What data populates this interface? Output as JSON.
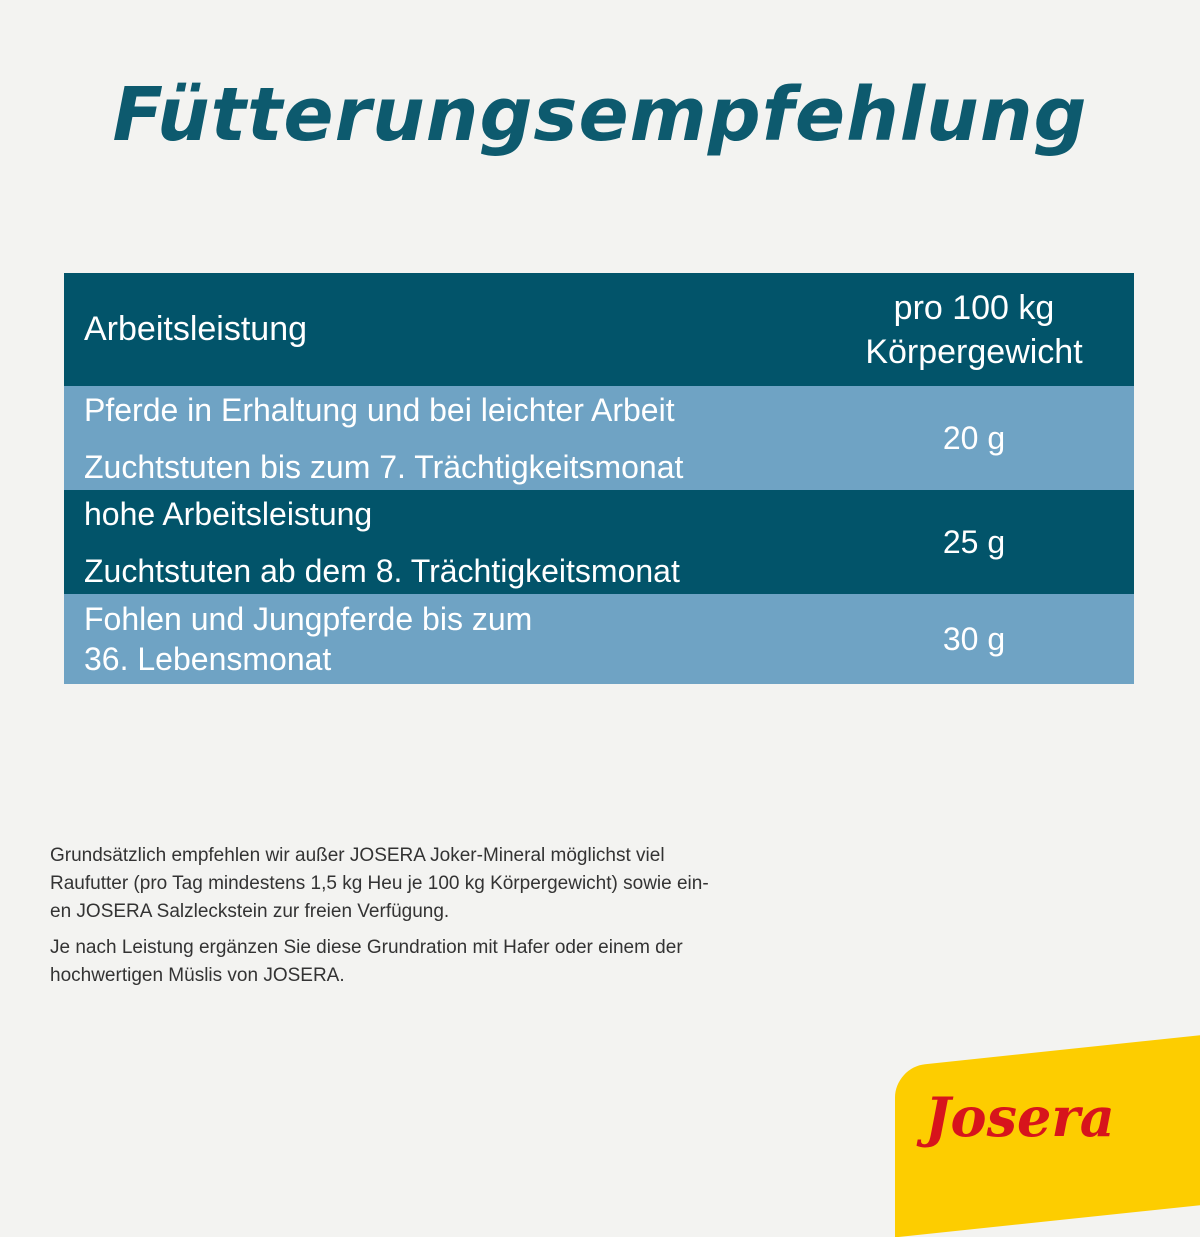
{
  "title": "Fütterungsempfehlung",
  "table": {
    "header": {
      "col1": "Arbeitsleistung",
      "col2_line1": "pro 100 kg",
      "col2_line2": "Körpergewicht"
    },
    "rows": [
      {
        "lines": [
          "Pferde in Erhaltung und bei leichter Arbeit",
          "Zuchtstuten bis zum 7. Trächtigkeitsmonat"
        ],
        "amount": "20 g"
      },
      {
        "lines": [
          "hohe Arbeitsleistung",
          "Zuchtstuten ab dem 8. Trächtigkeitsmonat"
        ],
        "amount": "25 g"
      },
      {
        "lines": [
          "Fohlen und Jungpferde bis zum",
          "36. Lebensmonat"
        ],
        "amount": "30 g"
      }
    ]
  },
  "note": {
    "p1_lines": [
      "Grundsätzlich empfehlen wir außer JOSERA  Joker-Mineral möglichst viel",
      "Raufutter (pro Tag mindestens 1,5 kg Heu je 100 kg Körpergewicht) sowie ein-",
      "en JOSERA Salzleckstein zur freien Verfügung."
    ],
    "p2_lines": [
      "Je nach Leistung ergänzen Sie diese Grundration mit Hafer oder einem der",
      "hochwertigen Müslis von JOSERA."
    ]
  },
  "logo": {
    "text": "Josera",
    "bg": "#fdcd00",
    "color": "#d7141c"
  },
  "colors": {
    "dark": "#02546a",
    "light": "#6fa3c4",
    "title": "#0d5a6e"
  }
}
